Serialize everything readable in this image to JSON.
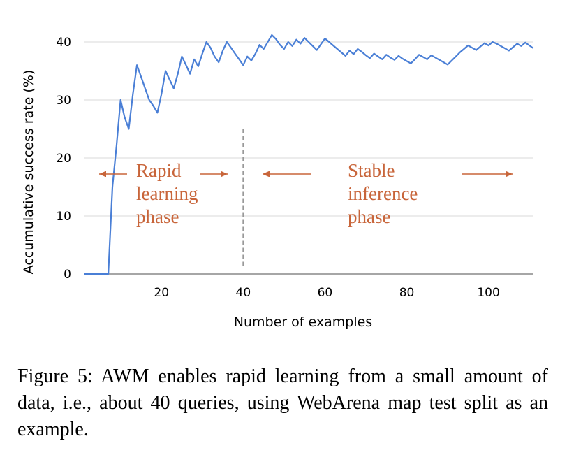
{
  "chart_data": {
    "type": "line",
    "title": "",
    "xlabel": "Number of examples",
    "ylabel": "Accumulative success rate (%)",
    "xlim": [
      1,
      111
    ],
    "ylim": [
      0,
      41
    ],
    "xticks": [
      20,
      40,
      60,
      80,
      100
    ],
    "yticks": [
      0,
      10,
      20,
      30,
      40
    ],
    "grid": "horizontal",
    "line_color": "#4a7fd6",
    "divider_x": 40,
    "series": [
      {
        "values": [
          [
            1,
            0
          ],
          [
            7,
            0
          ],
          [
            8,
            15
          ],
          [
            9,
            22
          ],
          [
            10,
            30
          ],
          [
            11,
            27
          ],
          [
            12,
            25
          ],
          [
            13,
            31
          ],
          [
            14,
            36
          ],
          [
            15,
            34
          ],
          [
            16,
            32
          ],
          [
            17,
            30
          ],
          [
            18,
            29
          ],
          [
            19,
            27.8
          ],
          [
            20,
            31
          ],
          [
            21,
            35
          ],
          [
            22,
            33.5
          ],
          [
            23,
            32
          ],
          [
            24,
            34.5
          ],
          [
            25,
            37.5
          ],
          [
            26,
            36
          ],
          [
            27,
            34.5
          ],
          [
            28,
            37
          ],
          [
            29,
            35.8
          ],
          [
            30,
            38
          ],
          [
            31,
            40
          ],
          [
            32,
            39
          ],
          [
            33,
            37.5
          ],
          [
            34,
            36.5
          ],
          [
            35,
            38.5
          ],
          [
            36,
            40
          ],
          [
            37,
            39
          ],
          [
            38,
            38
          ],
          [
            39,
            37
          ],
          [
            40,
            36
          ],
          [
            41,
            37.5
          ],
          [
            42,
            36.8
          ],
          [
            43,
            38
          ],
          [
            44,
            39.5
          ],
          [
            45,
            38.8
          ],
          [
            46,
            40
          ],
          [
            47,
            41.2
          ],
          [
            48,
            40.5
          ],
          [
            49,
            39.5
          ],
          [
            50,
            38.8
          ],
          [
            51,
            40
          ],
          [
            52,
            39.3
          ],
          [
            53,
            40.4
          ],
          [
            54,
            39.7
          ],
          [
            55,
            40.7
          ],
          [
            56,
            40
          ],
          [
            57,
            39.3
          ],
          [
            58,
            38.6
          ],
          [
            59,
            39.6
          ],
          [
            60,
            40.6
          ],
          [
            61,
            40
          ],
          [
            62,
            39.4
          ],
          [
            63,
            38.8
          ],
          [
            64,
            38.2
          ],
          [
            65,
            37.6
          ],
          [
            66,
            38.5
          ],
          [
            67,
            37.9
          ],
          [
            68,
            38.8
          ],
          [
            69,
            38.3
          ],
          [
            70,
            37.7
          ],
          [
            71,
            37.2
          ],
          [
            72,
            38
          ],
          [
            73,
            37.5
          ],
          [
            74,
            37
          ],
          [
            75,
            37.8
          ],
          [
            76,
            37.3
          ],
          [
            77,
            36.9
          ],
          [
            78,
            37.6
          ],
          [
            79,
            37.1
          ],
          [
            80,
            36.7
          ],
          [
            81,
            36.3
          ],
          [
            82,
            37
          ],
          [
            83,
            37.8
          ],
          [
            84,
            37.4
          ],
          [
            85,
            37
          ],
          [
            86,
            37.7
          ],
          [
            87,
            37.3
          ],
          [
            88,
            36.9
          ],
          [
            89,
            36.5
          ],
          [
            90,
            36.1
          ],
          [
            91,
            36.8
          ],
          [
            92,
            37.5
          ],
          [
            93,
            38.2
          ],
          [
            94,
            38.8
          ],
          [
            95,
            39.4
          ],
          [
            96,
            39
          ],
          [
            97,
            38.6
          ],
          [
            98,
            39.2
          ],
          [
            99,
            39.8
          ],
          [
            100,
            39.4
          ],
          [
            101,
            40
          ],
          [
            102,
            39.7
          ],
          [
            103,
            39.3
          ],
          [
            104,
            38.9
          ],
          [
            105,
            38.5
          ],
          [
            106,
            39.1
          ],
          [
            107,
            39.7
          ],
          [
            108,
            39.3
          ],
          [
            109,
            39.9
          ],
          [
            110,
            39.4
          ],
          [
            111,
            38.9
          ]
        ]
      }
    ],
    "annotations": {
      "rapid": [
        "Rapid",
        "learning",
        "phase"
      ],
      "stable": [
        "Stable",
        "inference",
        "phase"
      ]
    }
  },
  "caption": "Figure 5: AWM enables rapid learning from a small amount of data, i.e., about 40 queries, using WebArena map test split as an example."
}
